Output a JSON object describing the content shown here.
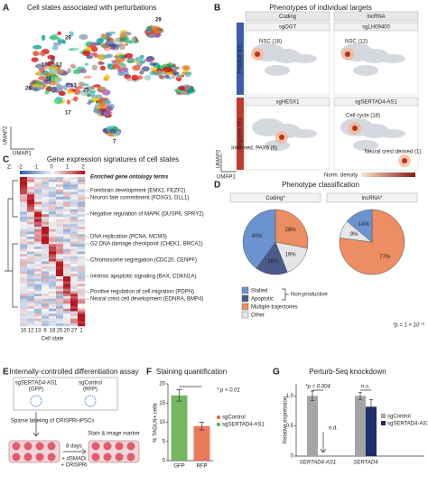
{
  "panel_labels": [
    "A",
    "B",
    "C",
    "D",
    "E",
    "F",
    "G"
  ],
  "panel_a": {
    "title": "Cell states associated with perturbations",
    "cluster_labels": [
      "29",
      "28",
      "16",
      "12",
      "26",
      "13",
      "25",
      "17",
      "7",
      "28"
    ],
    "x_axis": "UMAP1",
    "y_axis": "UMAP2"
  },
  "panel_b": {
    "title": "Phenotypes of individual targets",
    "columns": [
      "Coding",
      "lncRNA"
    ],
    "rows": [
      "Positive hits",
      "Negative hits"
    ],
    "targets": [
      "sgOGT",
      "sgLH09400",
      "sgHESX1",
      "sgSERTAD4-AS1"
    ],
    "annotations": [
      "NSC (18)",
      "NSC (12)",
      "Intermed. PAX6 (6)",
      "Cell cycle (18)",
      "Neural crest derived (1)"
    ],
    "colorbar_label": "Norm. density",
    "x_axis": "UMAP1",
    "y_axis": "UMAP2"
  },
  "panel_c": {
    "title": "Gene expression signatures of cell states",
    "z_label": "Z:",
    "z_ticks": [
      -2,
      -1,
      0,
      1,
      2
    ],
    "go_header": "Enriched gene ontology terms",
    "go_terms": [
      "Forebrain development (EMX2, FEZF2)",
      "Neuron fate commitment (FOXG1, DLL1)",
      "Negative regulation of MAPK (DUSP6, SPRY2)",
      "DNA replication (PCNA, MCM3)",
      "G2 DNA damage checkpoint (CHEK1, BRCA1)",
      "Chromosome segregation (CDC20, CENPF)",
      "Intrinsic apoptotic signaling (BAX, CDKN1A)",
      "Positive regulation of cell migration (PDPN)",
      "Neural crest cell development (EDNRA, BMP4)"
    ],
    "cell_states": [
      "16",
      "12",
      "13",
      "6",
      "18",
      "25",
      "20",
      "27",
      "1"
    ],
    "x_axis": "Cell state"
  },
  "panel_e": {
    "title": "Internally-controlled differentiation assay",
    "guides": [
      "sgSERTAD4-AS1",
      "sgControl"
    ],
    "reporters": [
      "(GFP)",
      "(RFP)"
    ],
    "step1": "Sparse labeling of CRISPRi-iPSCs",
    "duration": "8 days",
    "treatments": [
      "+ dSMADi",
      "+ CRISPRi"
    ],
    "step2": "Stain & image marker"
  },
  "chart_data": [
    {
      "type": "pie",
      "title": "Phenotype classification",
      "categories": [
        "Stalled",
        "Apoptotic",
        "Multiple trajectories",
        "Other"
      ],
      "colors": [
        "#6b93d0",
        "#4a5a8a",
        "#ec8d63",
        "#e6e6e6"
      ],
      "group_label": "Non-productive",
      "note": "*p = 1 × 10⁻⁵",
      "series": [
        {
          "name": "Coding*",
          "values": [
            40,
            16,
            28,
            16
          ],
          "value_labels": [
            "40%",
            "16%",
            "28%",
            "16%"
          ]
        },
        {
          "name": "lncRNA*",
          "values": [
            14,
            0,
            77,
            9
          ],
          "value_labels": [
            "14%",
            null,
            "77%",
            "9%"
          ]
        }
      ]
    },
    {
      "type": "bar",
      "title": "Staining quantification",
      "y_label": "% TAGLN+ cells",
      "categories": [
        "GFP",
        "RFP"
      ],
      "values": [
        17,
        9
      ],
      "errors": [
        1.5,
        1
      ],
      "colors": [
        "#5aab45",
        "#e8613c"
      ],
      "ylim": [
        0,
        20
      ],
      "yticks": [
        0,
        5,
        10,
        15,
        20
      ],
      "annotation": "* p < 0.01",
      "legend": [
        {
          "name": "sgControl",
          "color": "#e8613c"
        },
        {
          "name": "sgSERTAD4-AS1",
          "color": "#5aab45"
        }
      ]
    },
    {
      "type": "grouped_bar",
      "title": "Perturb-Seq knockdown",
      "y_label": "Relative expression",
      "categories": [
        "SERTAD4-AS1",
        "SERTAD4"
      ],
      "series": [
        {
          "name": "sgControl",
          "color": "#a5a5a5",
          "values": [
            1.0,
            1.0
          ],
          "errors": [
            0.08,
            0.06
          ]
        },
        {
          "name": "sgSERTAD4-AS1",
          "color": "#1f2f6b",
          "values": [
            null,
            0.82
          ],
          "errors": [
            null,
            0.12
          ]
        }
      ],
      "ylim": [
        0,
        1.2
      ],
      "yticks": [
        0,
        0.5,
        {
          "value": 1,
          "label": "1.0"
        }
      ],
      "annotations": [
        "*p = 0.004",
        "n.s.",
        "n.d."
      ]
    }
  ]
}
